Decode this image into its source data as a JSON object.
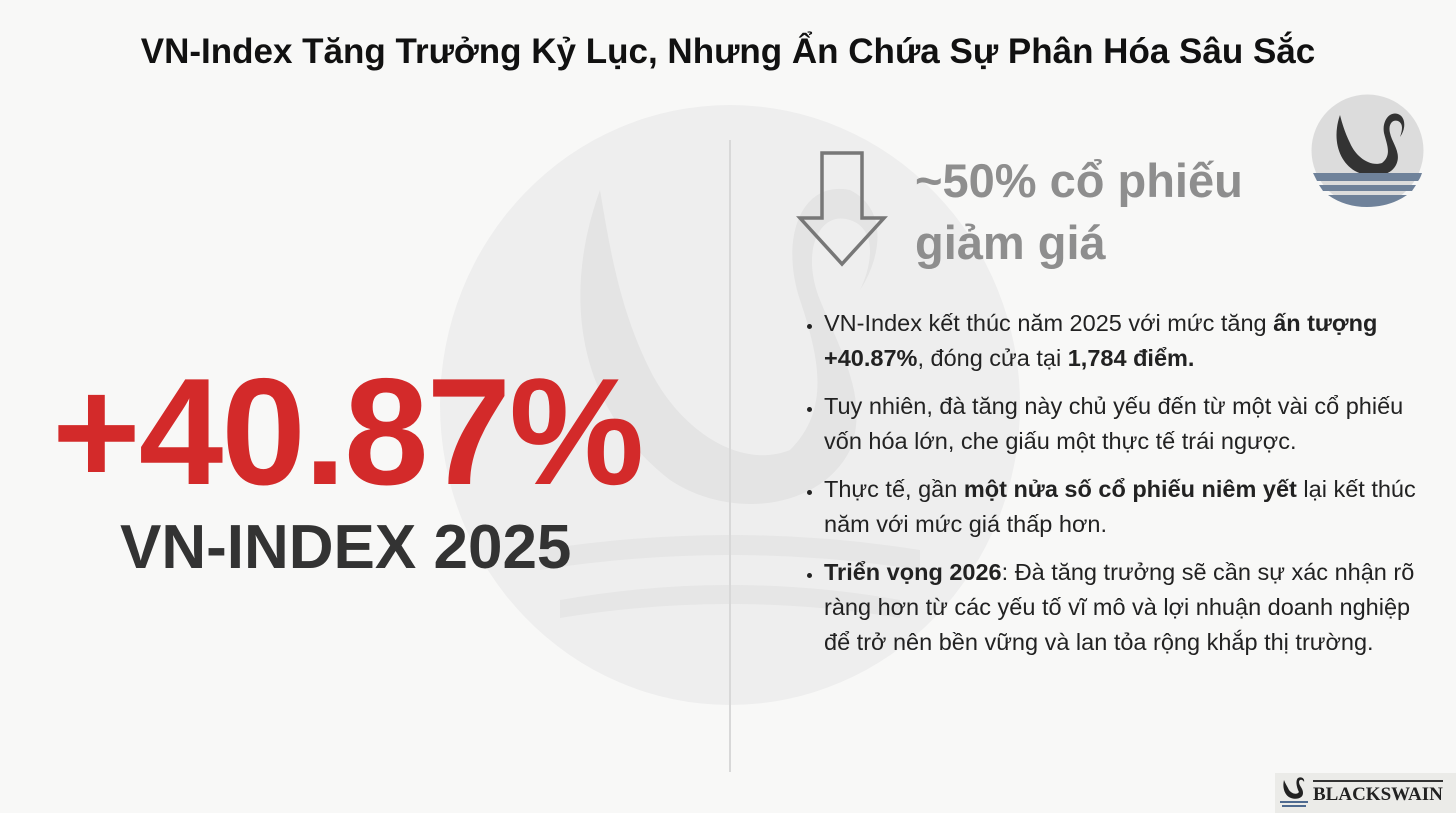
{
  "title": "VN-Index Tăng Trưởng Kỷ Lục, Nhưng Ẩn Chứa Sự Phân Hóa Sâu Sắc",
  "left": {
    "big_number": "+40.87%",
    "label": "VN-INDEX 2025"
  },
  "right": {
    "headline_line1": "~50% cổ phiếu",
    "headline_line2": "giảm giá",
    "bullets": [
      {
        "pre": "VN-Index kết thúc năm 2025 với mức tăng ",
        "b1": "ấn tượng +40.87%",
        "mid": ", đóng cửa tại ",
        "b2": "1,784 điểm.",
        "post": ""
      },
      {
        "pre": "Tuy nhiên, đà tăng này chủ yếu đến từ một vài cổ phiếu vốn hóa lớn, che giấu một thực tế trái ngược.",
        "b1": "",
        "mid": "",
        "b2": "",
        "post": ""
      },
      {
        "pre": "Thực tế, gần ",
        "b1": "một nửa số cổ phiếu niêm yết",
        "mid": " lại kết thúc năm với mức giá thấp hơn.",
        "b2": "",
        "post": ""
      },
      {
        "pre": "",
        "b1": "Triển vọng 2026",
        "mid": ": Đà tăng trưởng sẽ cần sự xác nhận rõ ràng hơn từ các yếu tố vĩ mô và lợi nhuận doanh nghiệp để trở nên bền vững và lan tỏa rộng khắp thị trường.",
        "b2": "",
        "post": ""
      }
    ]
  },
  "brand": {
    "name": "BLACKSWAIN",
    "icon": "black-swan-logo"
  },
  "colors": {
    "accent": "#d32a2a",
    "headline_gray": "#8e8e8e",
    "water": "#6f829a"
  }
}
